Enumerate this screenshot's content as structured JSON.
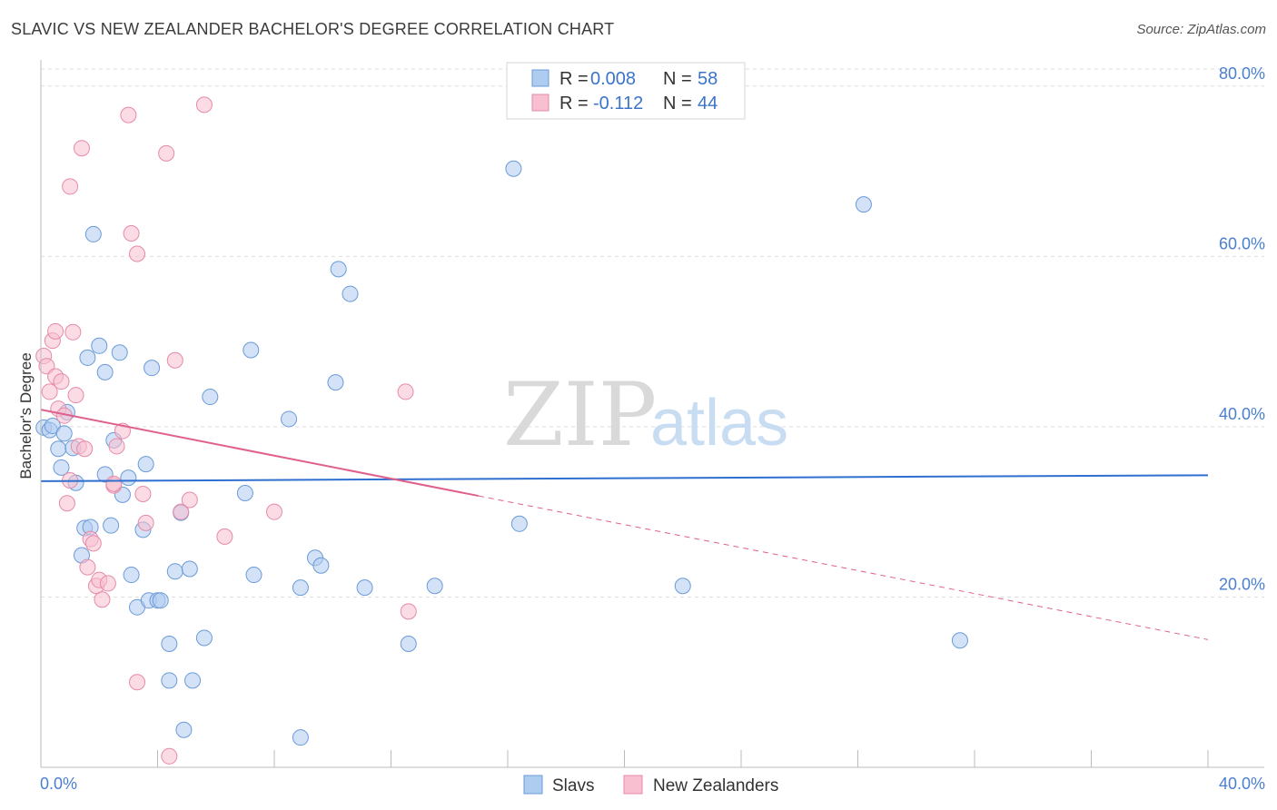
{
  "title": "SLAVIC VS NEW ZEALANDER BACHELOR'S DEGREE CORRELATION CHART",
  "source": "Source: ZipAtlas.com",
  "watermark": {
    "zip": "ZIP",
    "atlas": "atlas"
  },
  "colors": {
    "slavs_fill": "#aecbf0",
    "slavs_stroke": "#6a9bd8",
    "slavs_line": "#2f6fcf",
    "nz_fill": "#f7bfd0",
    "nz_stroke": "#e68aa8",
    "nz_line": "#e0608d",
    "grid": "#dddddd",
    "axis_text": "#4a7fd0"
  },
  "legend": {
    "r_label": "R =",
    "n_label": "N =",
    "slavs": {
      "r": "0.008",
      "n": "58"
    },
    "nz": {
      "r": "-0.112",
      "n": "44"
    }
  },
  "bottom_legend": {
    "slavs": "Slavs",
    "nz": "New Zealanders"
  },
  "chart_data": {
    "type": "scatter",
    "title": "SLAVIC VS NEW ZEALANDER BACHELOR'S DEGREE CORRELATION CHART",
    "xlabel": "",
    "ylabel": "Bachelor's Degree",
    "xlim": [
      0,
      40
    ],
    "ylim": [
      0,
      82
    ],
    "x_tick_labels": [
      "0.0%",
      "40.0%"
    ],
    "y_ticks": [
      20,
      40,
      60,
      80
    ],
    "y_tick_labels": [
      "20.0%",
      "40.0%",
      "60.0%",
      "80.0%"
    ],
    "grid": true,
    "series": [
      {
        "name": "Slavs",
        "r": 0.008,
        "n": 58,
        "trend": {
          "x": [
            0,
            40
          ],
          "y": [
            33.6,
            34.3
          ],
          "dashed_from": null
        },
        "points": [
          [
            0.1,
            39.9
          ],
          [
            0.3,
            39.6
          ],
          [
            0.4,
            40.1
          ],
          [
            0.6,
            37.4
          ],
          [
            0.8,
            39.2
          ],
          [
            0.9,
            41.7
          ],
          [
            1.1,
            37.5
          ],
          [
            1.2,
            33.4
          ],
          [
            1.4,
            24.9
          ],
          [
            1.5,
            28.1
          ],
          [
            1.6,
            48.1
          ],
          [
            1.7,
            28.2
          ],
          [
            1.8,
            62.6
          ],
          [
            2.0,
            49.5
          ],
          [
            2.2,
            46.4
          ],
          [
            2.4,
            28.4
          ],
          [
            2.5,
            38.4
          ],
          [
            2.7,
            48.7
          ],
          [
            2.8,
            32.0
          ],
          [
            3.0,
            34.0
          ],
          [
            3.1,
            22.6
          ],
          [
            3.3,
            18.8
          ],
          [
            3.5,
            27.9
          ],
          [
            3.6,
            35.6
          ],
          [
            3.7,
            19.6
          ],
          [
            3.8,
            46.9
          ],
          [
            4.0,
            19.6
          ],
          [
            4.1,
            19.6
          ],
          [
            4.4,
            14.5
          ],
          [
            4.4,
            10.2
          ],
          [
            4.6,
            23.0
          ],
          [
            4.8,
            29.9
          ],
          [
            4.9,
            4.4
          ],
          [
            5.1,
            23.3
          ],
          [
            5.2,
            10.2
          ],
          [
            5.6,
            15.2
          ],
          [
            5.8,
            43.5
          ],
          [
            7.0,
            32.2
          ],
          [
            7.2,
            49.0
          ],
          [
            7.3,
            22.6
          ],
          [
            8.5,
            40.9
          ],
          [
            8.9,
            21.1
          ],
          [
            9.4,
            24.6
          ],
          [
            9.6,
            23.7
          ],
          [
            10.1,
            45.2
          ],
          [
            10.2,
            58.5
          ],
          [
            10.6,
            55.6
          ],
          [
            11.1,
            21.1
          ],
          [
            12.6,
            14.5
          ],
          [
            13.5,
            21.3
          ],
          [
            16.2,
            70.3
          ],
          [
            16.4,
            28.6
          ],
          [
            22.0,
            21.3
          ],
          [
            28.2,
            66.1
          ],
          [
            31.5,
            14.9
          ],
          [
            0.7,
            35.2
          ],
          [
            2.2,
            34.4
          ],
          [
            8.9,
            3.5
          ]
        ]
      },
      {
        "name": "New Zealanders",
        "r": -0.112,
        "n": 44,
        "trend": {
          "x": [
            0,
            40
          ],
          "y": [
            42.0,
            15.0
          ],
          "dashed_from": 15.0
        },
        "points": [
          [
            0.1,
            48.3
          ],
          [
            0.2,
            47.1
          ],
          [
            0.3,
            44.1
          ],
          [
            0.4,
            50.1
          ],
          [
            0.5,
            51.2
          ],
          [
            0.5,
            45.9
          ],
          [
            0.6,
            42.1
          ],
          [
            0.7,
            45.3
          ],
          [
            0.8,
            41.3
          ],
          [
            0.9,
            31.0
          ],
          [
            1.0,
            68.2
          ],
          [
            1.0,
            33.7
          ],
          [
            1.1,
            51.1
          ],
          [
            1.2,
            43.7
          ],
          [
            1.3,
            37.7
          ],
          [
            1.4,
            72.7
          ],
          [
            1.5,
            37.4
          ],
          [
            1.6,
            23.5
          ],
          [
            1.7,
            26.8
          ],
          [
            1.8,
            26.3
          ],
          [
            1.9,
            21.3
          ],
          [
            2.0,
            22.0
          ],
          [
            2.1,
            19.7
          ],
          [
            2.3,
            21.6
          ],
          [
            2.5,
            33.1
          ],
          [
            2.6,
            37.7
          ],
          [
            2.8,
            39.5
          ],
          [
            3.0,
            76.6
          ],
          [
            3.1,
            62.7
          ],
          [
            3.3,
            60.3
          ],
          [
            3.5,
            32.1
          ],
          [
            3.6,
            28.7
          ],
          [
            4.3,
            72.1
          ],
          [
            4.4,
            1.3
          ],
          [
            4.6,
            47.8
          ],
          [
            4.8,
            30.0
          ],
          [
            5.1,
            31.4
          ],
          [
            5.6,
            77.8
          ],
          [
            6.3,
            27.1
          ],
          [
            8.0,
            30.0
          ],
          [
            12.5,
            44.1
          ],
          [
            12.6,
            18.3
          ],
          [
            3.3,
            10.0
          ],
          [
            2.5,
            33.3
          ]
        ]
      }
    ]
  }
}
